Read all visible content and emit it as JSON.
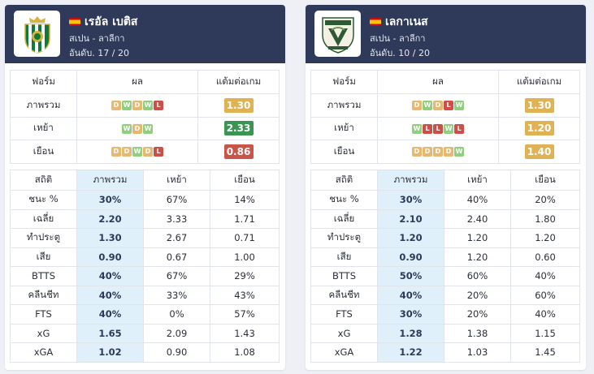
{
  "colors": {
    "header_bg": "#2f3959",
    "win": "#8fcf7d",
    "draw": "#e8b870",
    "loss": "#cf4e47",
    "ppg_orange": "#e0b254",
    "ppg_green": "#3a9452",
    "ppg_red": "#c85548",
    "highlight": "#dff0fa"
  },
  "teams": [
    {
      "name": "เรอัล เบติส",
      "country_league": "สเปน - ลาลีกา",
      "rank": "อันดับ. 17 / 20",
      "form_headers": [
        "ฟอร์ม",
        "ผล",
        "แต้มต่อเกม"
      ],
      "form_rows": [
        {
          "label": "ภาพรวม",
          "results": [
            "D",
            "W",
            "D",
            "W",
            "L"
          ],
          "ppg": "1.30",
          "ppg_color": "#e0b254"
        },
        {
          "label": "เหย้า",
          "results": [
            "W",
            "D",
            "W"
          ],
          "ppg": "2.33",
          "ppg_color": "#3a9452"
        },
        {
          "label": "เยือน",
          "results": [
            "D",
            "D",
            "W",
            "D",
            "L"
          ],
          "ppg": "0.86",
          "ppg_color": "#c85548"
        }
      ],
      "stat_headers": [
        "สถิติ",
        "ภาพรวม",
        "เหย้า",
        "เยือน"
      ],
      "stats": [
        [
          "ชนะ %",
          "30%",
          "67%",
          "14%"
        ],
        [
          "เฉลี่ย",
          "2.20",
          "3.33",
          "1.71"
        ],
        [
          "ทำประตู",
          "1.30",
          "2.67",
          "0.71"
        ],
        [
          "เสีย",
          "0.90",
          "0.67",
          "1.00"
        ],
        [
          "BTTS",
          "40%",
          "67%",
          "29%"
        ],
        [
          "คลีนชีท",
          "40%",
          "33%",
          "43%"
        ],
        [
          "FTS",
          "40%",
          "0%",
          "57%"
        ],
        [
          "xG",
          "1.65",
          "2.09",
          "1.43"
        ],
        [
          "xGA",
          "1.02",
          "0.90",
          "1.08"
        ]
      ]
    },
    {
      "name": "เลกาเนส",
      "country_league": "สเปน - ลาลีกา",
      "rank": "อันดับ. 10 / 20",
      "form_headers": [
        "ฟอร์ม",
        "ผล",
        "แต้มต่อเกม"
      ],
      "form_rows": [
        {
          "label": "ภาพรวม",
          "results": [
            "D",
            "W",
            "D",
            "L",
            "W"
          ],
          "ppg": "1.30",
          "ppg_color": "#e0b254"
        },
        {
          "label": "เหย้า",
          "results": [
            "W",
            "L",
            "L",
            "W",
            "L"
          ],
          "ppg": "1.20",
          "ppg_color": "#e0b254"
        },
        {
          "label": "เยือน",
          "results": [
            "D",
            "D",
            "D",
            "D",
            "W"
          ],
          "ppg": "1.40",
          "ppg_color": "#e0b254"
        }
      ],
      "stat_headers": [
        "สถิติ",
        "ภาพรวม",
        "เหย้า",
        "เยือน"
      ],
      "stats": [
        [
          "ชนะ %",
          "30%",
          "40%",
          "20%"
        ],
        [
          "เฉลี่ย",
          "2.10",
          "2.40",
          "1.80"
        ],
        [
          "ทำประตู",
          "1.20",
          "1.20",
          "1.20"
        ],
        [
          "เสีย",
          "0.90",
          "1.20",
          "0.60"
        ],
        [
          "BTTS",
          "50%",
          "60%",
          "40%"
        ],
        [
          "คลีนชีท",
          "40%",
          "20%",
          "60%"
        ],
        [
          "FTS",
          "30%",
          "20%",
          "40%"
        ],
        [
          "xG",
          "1.28",
          "1.38",
          "1.15"
        ],
        [
          "xGA",
          "1.22",
          "1.03",
          "1.45"
        ]
      ]
    }
  ]
}
